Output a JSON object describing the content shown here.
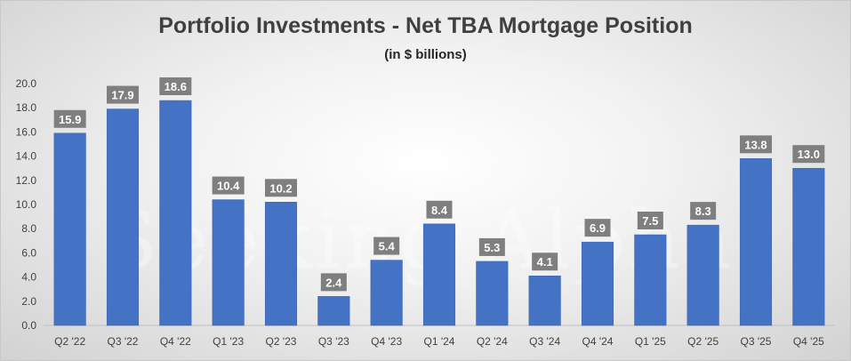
{
  "chart_data": {
    "type": "bar",
    "title": "Portfolio Investments - Net TBA Mortgage Position",
    "subtitle": "(in $ billions)",
    "categories": [
      "Q2 '22",
      "Q3 '22",
      "Q4 '22",
      "Q1 '23",
      "Q2 '23",
      "Q3 '23",
      "Q4 '23",
      "Q1 '24",
      "Q2 '24",
      "Q3 '24",
      "Q4 '24",
      "Q1 '25",
      "Q2 '25",
      "Q3 '25",
      "Q4 '25"
    ],
    "values": [
      15.9,
      17.9,
      18.6,
      10.4,
      10.2,
      2.4,
      5.4,
      8.4,
      5.3,
      4.1,
      6.9,
      7.5,
      8.3,
      13.8,
      13.0
    ],
    "data_labels": [
      "15.9",
      "17.9",
      "18.6",
      "10.4",
      "10.2",
      "2.4",
      "5.4",
      "8.4",
      "5.3",
      "4.1",
      "6.9",
      "7.5",
      "8.3",
      "13.8",
      "13.0"
    ],
    "ylim": [
      0,
      20
    ],
    "yticks": [
      "0.0",
      "2.0",
      "4.0",
      "6.0",
      "8.0",
      "10.0",
      "12.0",
      "14.0",
      "16.0",
      "18.0",
      "20.0"
    ],
    "xlabel": "",
    "ylabel": "",
    "grid": false,
    "legend": "none",
    "bar_color": "#4472c4",
    "label_box_color": "#7f7f7f"
  },
  "watermark": "Seeking Alpha"
}
